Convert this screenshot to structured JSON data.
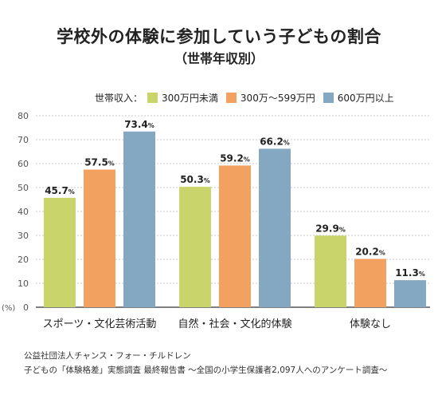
{
  "chart_data": {
    "type": "bar",
    "title": "学校外の体験に参加していう子どもの割合",
    "subtitle": "（世帯年収別）",
    "legend_prefix": "世帯収入：",
    "categories": [
      "スポーツ・文化芸術活動",
      "自然・社会・文化的体験",
      "体験なし"
    ],
    "series": [
      {
        "name": "300万円未満",
        "color": "#c9d56b",
        "values": [
          45.7,
          50.3,
          29.9
        ]
      },
      {
        "name": "300万～599万円",
        "color": "#f2a160",
        "values": [
          57.5,
          59.2,
          20.2
        ]
      },
      {
        "name": "600万円以上",
        "color": "#85a8c2",
        "values": [
          73.4,
          66.2,
          11.3
        ]
      }
    ],
    "ylim": [
      0,
      80
    ],
    "yticks": [
      "0",
      "10",
      "20",
      "30",
      "40",
      "50",
      "60",
      "70",
      "80"
    ],
    "yunit": "(%)",
    "value_labels": [
      [
        "45.7",
        "50.3",
        "29.9"
      ],
      [
        "57.5",
        "59.2",
        "20.2"
      ],
      [
        "73.4",
        "66.2",
        "11.3"
      ]
    ],
    "value_suffix": "%",
    "grid": true,
    "legend_position": "top"
  },
  "footer": {
    "line1": "公益社団法人チャンス・フォー・チルドレン",
    "line2": "子どもの「体験格差」実態調査 最終報告書 ～全国の小学生保護者2,097人へのアンケート調査～"
  }
}
